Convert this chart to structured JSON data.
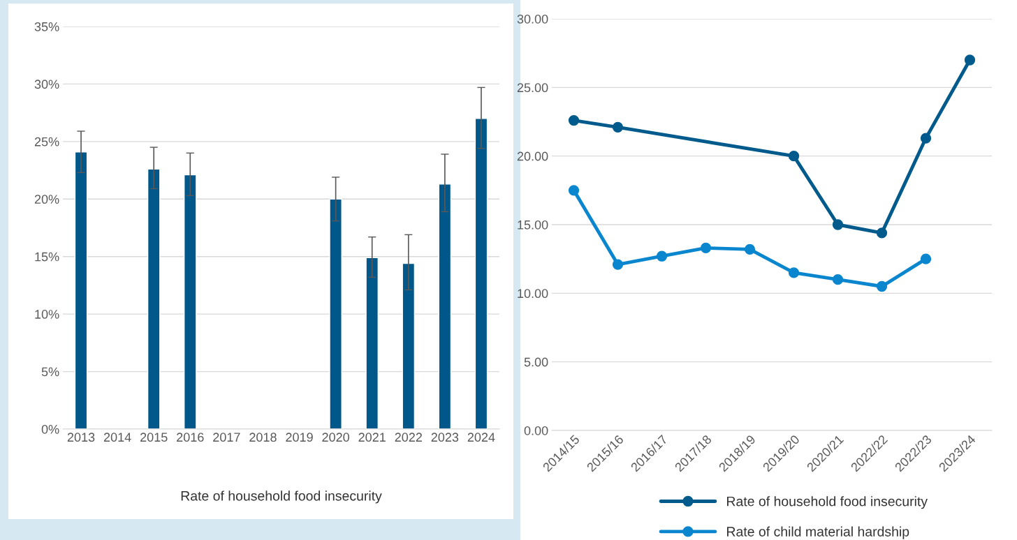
{
  "chart_data": [
    {
      "type": "bar",
      "xlabel": "Rate of household food insecurity",
      "categories": [
        "2013",
        "2014",
        "2015",
        "2016",
        "2017",
        "2018",
        "2019",
        "2020",
        "2021",
        "2022",
        "2023",
        "2024"
      ],
      "values": [
        24.1,
        null,
        22.6,
        22.1,
        null,
        null,
        null,
        20.0,
        14.9,
        14.4,
        21.3,
        27.0
      ],
      "errors": [
        [
          22.3,
          25.9
        ],
        null,
        [
          20.9,
          24.5
        ],
        [
          20.3,
          24.0
        ],
        null,
        null,
        null,
        [
          18.1,
          21.9
        ],
        [
          13.2,
          16.7
        ],
        [
          12.1,
          16.9
        ],
        [
          18.9,
          23.9
        ],
        [
          24.4,
          29.7
        ]
      ],
      "color": "#00578a",
      "ylim": [
        0,
        35
      ],
      "yticks": [
        {
          "value": 0,
          "label": "0%"
        },
        {
          "value": 5,
          "label": "5%"
        },
        {
          "value": 10,
          "label": "10%"
        },
        {
          "value": 15,
          "label": "15%"
        },
        {
          "value": 20,
          "label": "20%"
        },
        {
          "value": 25,
          "label": "25%"
        },
        {
          "value": 30,
          "label": "30%"
        },
        {
          "value": 35,
          "label": "35%"
        }
      ],
      "grid": "y"
    },
    {
      "type": "line",
      "categories": [
        "2014/15",
        "2015/16",
        "2016/17",
        "2017/18",
        "2018/19",
        "2019/20",
        "2020/21",
        "2022/22",
        "2022/23",
        "2023/24"
      ],
      "series": [
        {
          "name": "Rate of household food insecurity",
          "color": "#005b8c",
          "values": [
            22.6,
            22.1,
            null,
            null,
            null,
            20.0,
            15.0,
            14.4,
            21.3,
            27.0
          ]
        },
        {
          "name": "Rate of child material hardship",
          "color": "#0a86cf",
          "values": [
            17.5,
            12.1,
            12.7,
            13.3,
            13.2,
            11.5,
            11.0,
            10.5,
            12.5,
            null
          ]
        }
      ],
      "ylim": [
        0,
        30
      ],
      "yticks": [
        {
          "value": 0,
          "label": "0.00"
        },
        {
          "value": 5,
          "label": "5.00"
        },
        {
          "value": 10,
          "label": "10.00"
        },
        {
          "value": 15,
          "label": "15.00"
        },
        {
          "value": 20,
          "label": "20.00"
        },
        {
          "value": 25,
          "label": "25.00"
        },
        {
          "value": 30,
          "label": "30.00"
        }
      ],
      "grid": "y",
      "marker": "circle",
      "line_style": "solid",
      "legend": "bottom"
    }
  ]
}
